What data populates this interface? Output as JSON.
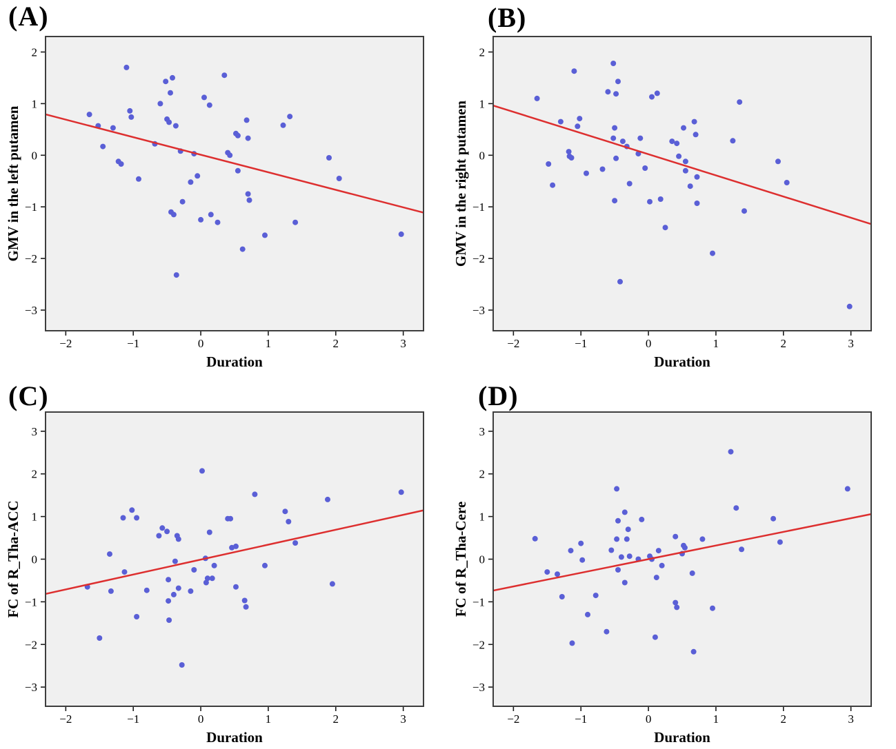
{
  "figure": {
    "colors": {
      "point": "#5a5fd6",
      "regression_line": "#dd2f2f",
      "plot_background": "#f0f0f0",
      "frame": "#3d3d3d",
      "tick": "#1a1a1a",
      "text": "#000000",
      "page_background": "#ffffff"
    }
  },
  "chart_data": [
    {
      "type": "scatter",
      "panel_label": "(A)",
      "xlabel": "Duration",
      "ylabel": "GMV in the left putamen",
      "xlim": [
        -2.3,
        3.3
      ],
      "ylim": [
        -3.4,
        2.3
      ],
      "xticks": [
        -2,
        -1,
        0,
        1,
        2,
        3
      ],
      "yticks": [
        2,
        1,
        0,
        -1,
        -2,
        -3
      ],
      "grid": false,
      "legend": "none",
      "regression_line": {
        "slope": -0.34,
        "intercept": 0.01
      },
      "points": [
        [
          -1.65,
          0.79
        ],
        [
          -1.52,
          0.57
        ],
        [
          -1.45,
          0.17
        ],
        [
          -1.3,
          0.53
        ],
        [
          -1.22,
          -0.12
        ],
        [
          -1.18,
          -0.17
        ],
        [
          -1.1,
          1.7
        ],
        [
          -1.05,
          0.86
        ],
        [
          -1.03,
          0.74
        ],
        [
          -0.92,
          -0.46
        ],
        [
          -0.68,
          0.22
        ],
        [
          -0.6,
          1.0
        ],
        [
          -0.52,
          1.43
        ],
        [
          -0.5,
          0.7
        ],
        [
          -0.47,
          0.64
        ],
        [
          -0.45,
          1.21
        ],
        [
          -0.42,
          1.5
        ],
        [
          -0.44,
          -1.1
        ],
        [
          -0.4,
          -1.15
        ],
        [
          -0.37,
          0.57
        ],
        [
          -0.36,
          -2.32
        ],
        [
          -0.3,
          0.08
        ],
        [
          -0.27,
          -0.9
        ],
        [
          -0.15,
          -0.52
        ],
        [
          -0.1,
          0.03
        ],
        [
          -0.05,
          -0.4
        ],
        [
          0,
          -1.25
        ],
        [
          0.05,
          1.12
        ],
        [
          0.13,
          0.97
        ],
        [
          0.15,
          -1.15
        ],
        [
          0.25,
          -1.3
        ],
        [
          0.35,
          1.55
        ],
        [
          0.4,
          0.05
        ],
        [
          0.43,
          0
        ],
        [
          0.52,
          0.42
        ],
        [
          0.55,
          0.38
        ],
        [
          0.55,
          -0.3
        ],
        [
          0.62,
          -1.82
        ],
        [
          0.68,
          0.68
        ],
        [
          0.7,
          0.33
        ],
        [
          0.7,
          -0.75
        ],
        [
          0.72,
          -0.87
        ],
        [
          0.95,
          -1.55
        ],
        [
          1.22,
          0.58
        ],
        [
          1.32,
          0.75
        ],
        [
          1.4,
          -1.3
        ],
        [
          1.9,
          -0.05
        ],
        [
          2.05,
          -0.45
        ],
        [
          2.97,
          -1.53
        ]
      ]
    },
    {
      "type": "scatter",
      "panel_label": "(B)",
      "xlabel": "Duration",
      "ylabel": "GMV in the right putamen",
      "xlim": [
        -2.3,
        3.3
      ],
      "ylim": [
        -3.4,
        2.3
      ],
      "xticks": [
        -2,
        -1,
        0,
        1,
        2,
        3
      ],
      "yticks": [
        2,
        1,
        0,
        -1,
        -2,
        -3
      ],
      "grid": false,
      "legend": "none",
      "regression_line": {
        "slope": -0.41,
        "intercept": 0.02
      },
      "points": [
        [
          -1.65,
          1.1
        ],
        [
          -1.48,
          -0.17
        ],
        [
          -1.42,
          -0.58
        ],
        [
          -1.3,
          0.65
        ],
        [
          -1.18,
          0.07
        ],
        [
          -1.17,
          -0.02
        ],
        [
          -1.14,
          -0.05
        ],
        [
          -1.1,
          1.63
        ],
        [
          -1.05,
          0.56
        ],
        [
          -1.02,
          0.71
        ],
        [
          -0.92,
          -0.35
        ],
        [
          -0.68,
          -0.27
        ],
        [
          -0.6,
          1.23
        ],
        [
          -0.52,
          1.78
        ],
        [
          -0.52,
          0.33
        ],
        [
          -0.5,
          0.53
        ],
        [
          -0.5,
          -0.88
        ],
        [
          -0.48,
          1.19
        ],
        [
          -0.48,
          -0.06
        ],
        [
          -0.45,
          1.43
        ],
        [
          -0.42,
          -2.45
        ],
        [
          -0.38,
          0.27
        ],
        [
          -0.32,
          0.17
        ],
        [
          -0.28,
          -0.55
        ],
        [
          -0.15,
          0.03
        ],
        [
          -0.12,
          0.33
        ],
        [
          -0.05,
          -0.25
        ],
        [
          0.02,
          -0.9
        ],
        [
          0.05,
          1.13
        ],
        [
          0.13,
          1.2
        ],
        [
          0.18,
          -0.85
        ],
        [
          0.25,
          -1.4
        ],
        [
          0.35,
          0.27
        ],
        [
          0.42,
          0.23
        ],
        [
          0.45,
          -0.02
        ],
        [
          0.52,
          0.53
        ],
        [
          0.55,
          -0.12
        ],
        [
          0.55,
          -0.3
        ],
        [
          0.62,
          -0.6
        ],
        [
          0.68,
          0.65
        ],
        [
          0.7,
          0.4
        ],
        [
          0.72,
          -0.42
        ],
        [
          0.72,
          -0.93
        ],
        [
          0.95,
          -1.9
        ],
        [
          1.25,
          0.28
        ],
        [
          1.35,
          1.03
        ],
        [
          1.42,
          -1.08
        ],
        [
          1.92,
          -0.12
        ],
        [
          2.05,
          -0.53
        ],
        [
          2.98,
          -2.93
        ]
      ]
    },
    {
      "type": "scatter",
      "panel_label": "(C)",
      "xlabel": "Duration",
      "ylabel": "FC of R_Tha-ACC",
      "xlim": [
        -2.3,
        3.3
      ],
      "ylim": [
        -3.45,
        3.45
      ],
      "xticks": [
        -2,
        -1,
        0,
        1,
        2,
        3
      ],
      "yticks": [
        3,
        2,
        1,
        0,
        -1,
        -2,
        -3
      ],
      "grid": false,
      "legend": "none",
      "regression_line": {
        "slope": 0.35,
        "intercept": -0.01
      },
      "points": [
        [
          -1.68,
          -0.65
        ],
        [
          -1.5,
          -1.85
        ],
        [
          -1.35,
          0.12
        ],
        [
          -1.33,
          -0.75
        ],
        [
          -1.15,
          0.97
        ],
        [
          -1.13,
          -0.3
        ],
        [
          -1.02,
          1.15
        ],
        [
          -0.95,
          0.97
        ],
        [
          -0.95,
          -1.35
        ],
        [
          -0.8,
          -0.73
        ],
        [
          -0.62,
          0.55
        ],
        [
          -0.57,
          0.73
        ],
        [
          -0.5,
          0.65
        ],
        [
          -0.48,
          -0.48
        ],
        [
          -0.48,
          -0.98
        ],
        [
          -0.47,
          -1.43
        ],
        [
          -0.4,
          -0.83
        ],
        [
          -0.38,
          -0.05
        ],
        [
          -0.35,
          0.55
        ],
        [
          -0.33,
          0.47
        ],
        [
          -0.33,
          -0.68
        ],
        [
          -0.28,
          -2.48
        ],
        [
          -0.15,
          -0.75
        ],
        [
          -0.1,
          -0.25
        ],
        [
          0.02,
          2.07
        ],
        [
          0.07,
          0.02
        ],
        [
          0.08,
          -0.55
        ],
        [
          0.1,
          -0.45
        ],
        [
          0.13,
          0.63
        ],
        [
          0.17,
          -0.45
        ],
        [
          0.2,
          -0.15
        ],
        [
          0.4,
          0.95
        ],
        [
          0.44,
          0.95
        ],
        [
          0.46,
          0.27
        ],
        [
          0.52,
          0.3
        ],
        [
          0.52,
          -0.65
        ],
        [
          0.65,
          -0.97
        ],
        [
          0.67,
          -1.12
        ],
        [
          0.8,
          1.52
        ],
        [
          0.95,
          -0.15
        ],
        [
          1.25,
          1.12
        ],
        [
          1.3,
          0.88
        ],
        [
          1.4,
          0.38
        ],
        [
          1.88,
          1.4
        ],
        [
          1.95,
          -0.58
        ],
        [
          2.97,
          1.57
        ]
      ]
    },
    {
      "type": "scatter",
      "panel_label": "(D)",
      "xlabel": "Duration",
      "ylabel": "FC of R_Tha-Cere",
      "xlim": [
        -2.3,
        3.3
      ],
      "ylim": [
        -3.45,
        3.45
      ],
      "xticks": [
        -2,
        -1,
        0,
        1,
        2,
        3
      ],
      "yticks": [
        3,
        2,
        1,
        0,
        -1,
        -2,
        -3
      ],
      "grid": false,
      "legend": "none",
      "regression_line": {
        "slope": 0.32,
        "intercept": 0
      },
      "points": [
        [
          -1.68,
          0.48
        ],
        [
          -1.5,
          -0.3
        ],
        [
          -1.35,
          -0.35
        ],
        [
          -1.28,
          -0.88
        ],
        [
          -1.15,
          0.2
        ],
        [
          -1.13,
          -1.97
        ],
        [
          -1,
          0.37
        ],
        [
          -0.98,
          -0.02
        ],
        [
          -0.9,
          -1.3
        ],
        [
          -0.78,
          -0.85
        ],
        [
          -0.62,
          -1.7
        ],
        [
          -0.55,
          0.21
        ],
        [
          -0.47,
          1.65
        ],
        [
          -0.47,
          0.47
        ],
        [
          -0.45,
          0.9
        ],
        [
          -0.45,
          -0.25
        ],
        [
          -0.4,
          0.05
        ],
        [
          -0.35,
          1.1
        ],
        [
          -0.35,
          -0.55
        ],
        [
          -0.32,
          0.47
        ],
        [
          -0.3,
          0.7
        ],
        [
          -0.28,
          0.07
        ],
        [
          -0.15,
          0
        ],
        [
          -0.1,
          0.93
        ],
        [
          0.02,
          0.07
        ],
        [
          0.05,
          0
        ],
        [
          0.1,
          -1.83
        ],
        [
          0.12,
          -0.43
        ],
        [
          0.15,
          0.2
        ],
        [
          0.2,
          -0.15
        ],
        [
          0.4,
          0.53
        ],
        [
          0.4,
          -1.02
        ],
        [
          0.42,
          -1.13
        ],
        [
          0.5,
          0.13
        ],
        [
          0.52,
          0.32
        ],
        [
          0.54,
          0.27
        ],
        [
          0.65,
          -0.33
        ],
        [
          0.67,
          -2.17
        ],
        [
          0.8,
          0.47
        ],
        [
          0.95,
          -1.15
        ],
        [
          1.22,
          2.52
        ],
        [
          1.3,
          1.2
        ],
        [
          1.38,
          0.23
        ],
        [
          1.85,
          0.95
        ],
        [
          1.95,
          0.4
        ],
        [
          2.95,
          1.65
        ]
      ]
    }
  ]
}
